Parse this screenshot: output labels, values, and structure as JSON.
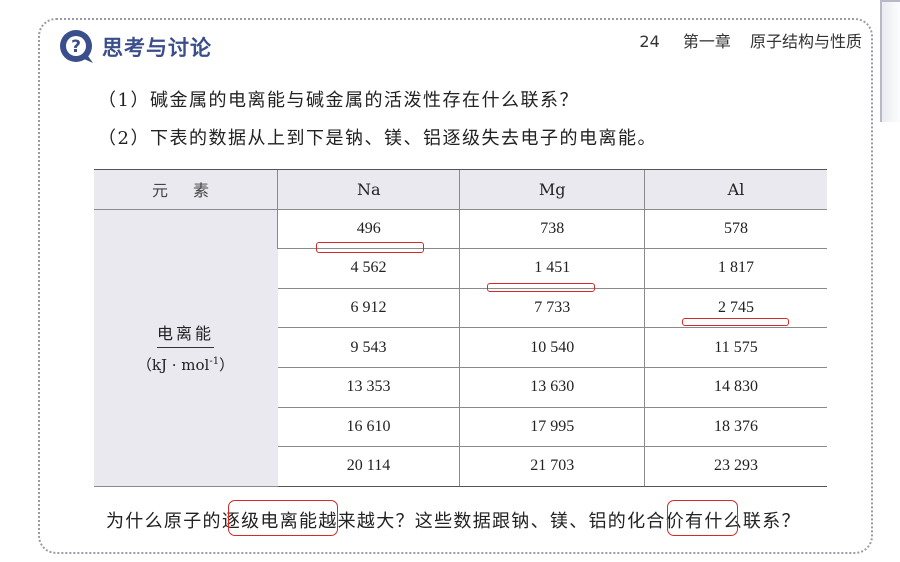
{
  "header": {
    "title": "思考与讨论",
    "page_number": "24",
    "chapter": "第一章",
    "chapter_title": "原子结构与性质"
  },
  "questions": {
    "q1": "（1）碱金属的电离能与碱金属的活泼性存在什么联系？",
    "q2": "（2）下表的数据从上到下是钠、镁、铝逐级失去电子的电离能。"
  },
  "table": {
    "header_label": "元 素",
    "elements": [
      "Na",
      "Mg",
      "Al"
    ],
    "row_label_top": "电离能",
    "row_label_unit_pre": "（kJ · mol",
    "row_label_unit_sup": "-1",
    "row_label_unit_post": "）",
    "rows": [
      [
        "496",
        "738",
        "578"
      ],
      [
        "4 562",
        "1 451",
        "1 817"
      ],
      [
        "6 912",
        "7 733",
        "2 745"
      ],
      [
        "9 543",
        "10 540",
        "11 575"
      ],
      [
        "13 353",
        "13 630",
        "14 830"
      ],
      [
        "16 610",
        "17 995",
        "18 376"
      ],
      [
        "20 114",
        "21 703",
        "23 293"
      ]
    ]
  },
  "bottom": {
    "part1": "为什么原子的",
    "part2": "逐级电离能",
    "part3": "越来越大？这些数据跟钠、镁、铝的",
    "part4": "化合价",
    "part5": "有什么联系？"
  },
  "colors": {
    "accent": "#3b4e8c",
    "annotation": "#d42a2a",
    "table_header_bg": "#e9e9ef"
  }
}
